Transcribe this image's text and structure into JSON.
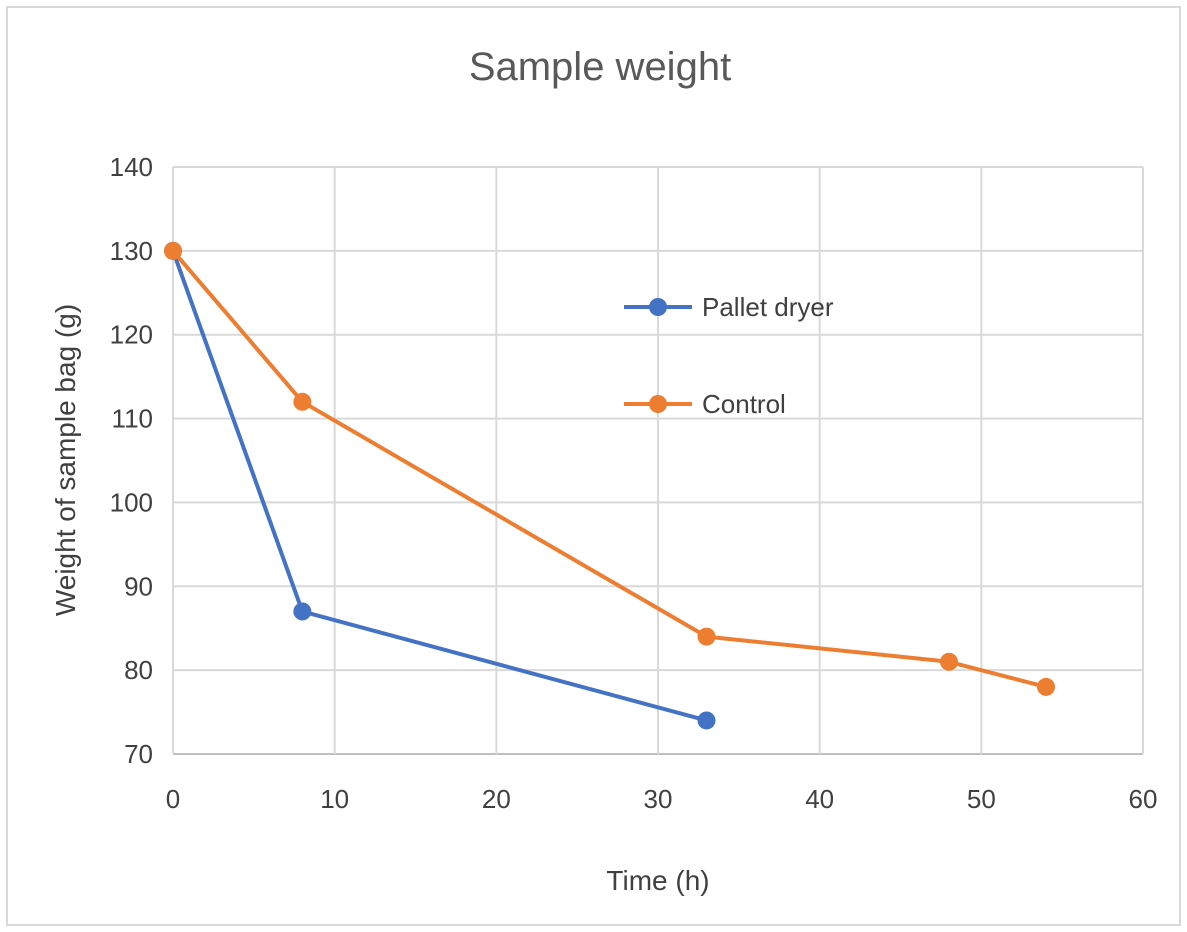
{
  "chart_data": {
    "type": "line",
    "title": "Sample weight",
    "xlabel": "Time (h)",
    "ylabel": "Weight of sample bag (g)",
    "xlim": [
      0,
      60
    ],
    "ylim": [
      70,
      140
    ],
    "x_ticks": [
      0,
      10,
      20,
      30,
      40,
      50,
      60
    ],
    "y_ticks": [
      70,
      80,
      90,
      100,
      110,
      120,
      130,
      140
    ],
    "grid": true,
    "legend_position": "center-right",
    "series": [
      {
        "name": "Pallet dryer",
        "color": "#4472c4",
        "x": [
          0,
          8,
          33
        ],
        "y": [
          130,
          87,
          74
        ]
      },
      {
        "name": "Control",
        "color": "#ed7d31",
        "x": [
          0,
          8,
          33,
          48,
          54
        ],
        "y": [
          130,
          112,
          84,
          81,
          78
        ]
      }
    ]
  }
}
